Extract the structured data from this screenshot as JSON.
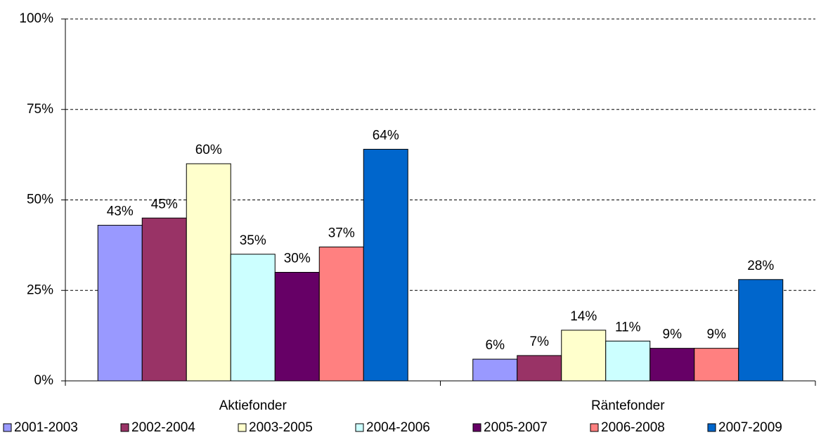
{
  "chart_data": {
    "type": "bar",
    "categories": [
      "Aktiefonder",
      "Räntefonder"
    ],
    "series": [
      {
        "name": "2001-2003",
        "color": "#9999ff",
        "values": [
          43,
          6
        ],
        "value_labels": [
          "43%",
          "6%"
        ]
      },
      {
        "name": "2002-2004",
        "color": "#993366",
        "values": [
          45,
          7
        ],
        "value_labels": [
          "45%",
          "7%"
        ]
      },
      {
        "name": "2003-2005",
        "color": "#ffffcc",
        "values": [
          60,
          14
        ],
        "value_labels": [
          "60%",
          "14%"
        ]
      },
      {
        "name": "2004-2006",
        "color": "#ccffff",
        "values": [
          35,
          11
        ],
        "value_labels": [
          "35%",
          "11%"
        ]
      },
      {
        "name": "2005-2007",
        "color": "#660066",
        "values": [
          30,
          9
        ],
        "value_labels": [
          "30%",
          "9%"
        ]
      },
      {
        "name": "2006-2008",
        "color": "#ff8080",
        "values": [
          37,
          9
        ],
        "value_labels": [
          "37%",
          "9%"
        ]
      },
      {
        "name": "2007-2009",
        "color": "#0066cc",
        "values": [
          64,
          28
        ],
        "value_labels": [
          "64%",
          "28%"
        ]
      }
    ],
    "ylim": [
      0,
      100
    ],
    "yticks": [
      {
        "value": 0,
        "label": "0%"
      },
      {
        "value": 25,
        "label": "25%"
      },
      {
        "value": 50,
        "label": "50%"
      },
      {
        "value": 75,
        "label": "75%"
      },
      {
        "value": 100,
        "label": "100%"
      }
    ],
    "grid": true,
    "legend": "bottom"
  }
}
